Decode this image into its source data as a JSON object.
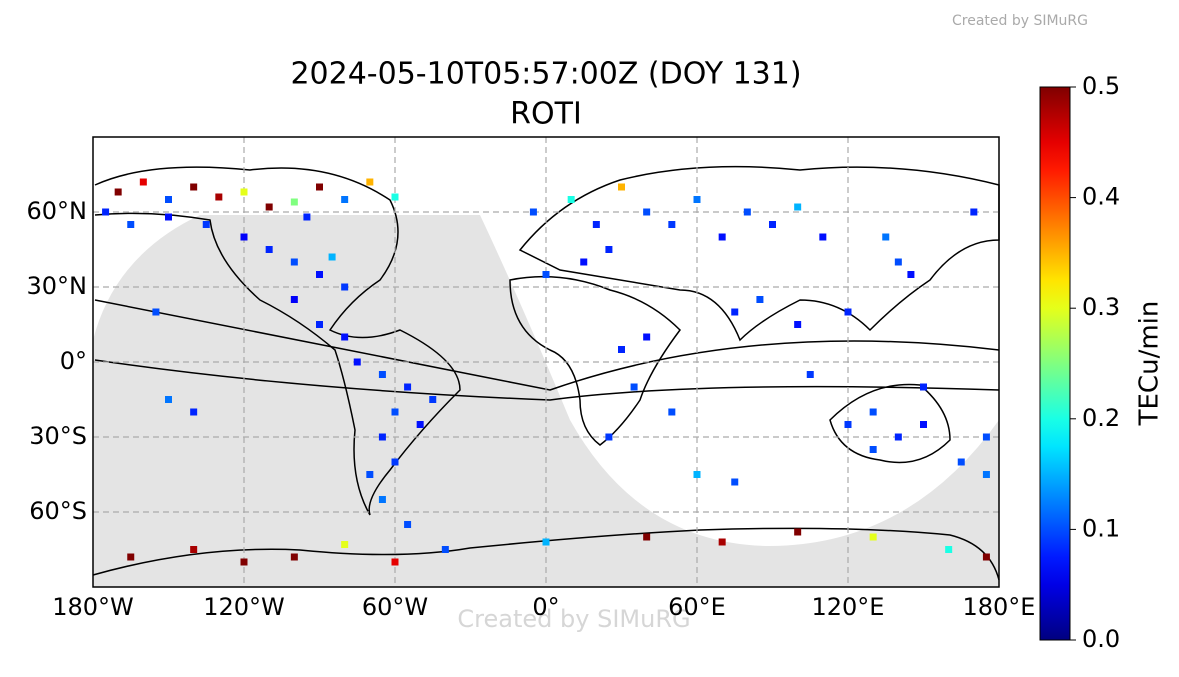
{
  "credit": "Created by SIMuRG",
  "chart_data": {
    "type": "scatter",
    "title": "2024-05-10T05:57:00Z (DOY 131)",
    "subtitle": "ROTI",
    "x": [
      -170,
      -160,
      -150,
      -140,
      -130,
      -120,
      -110,
      -100,
      -95,
      -90,
      -80,
      -70,
      -60,
      -175,
      -165,
      -150,
      -135,
      -120,
      -110,
      -100,
      -90,
      -85,
      -80,
      -100,
      -90,
      -80,
      -155,
      -150,
      -140,
      -75,
      -65,
      -55,
      -45,
      -60,
      -50,
      -65,
      -60,
      -70,
      -65,
      -55,
      -5,
      10,
      20,
      30,
      40,
      50,
      60,
      70,
      80,
      90,
      100,
      110,
      25,
      0,
      15,
      30,
      35,
      25,
      40,
      50,
      75,
      85,
      100,
      105,
      120,
      140,
      145,
      135,
      150,
      120,
      130,
      140,
      150,
      130,
      165,
      175,
      170,
      175,
      60,
      75,
      -165,
      -140,
      -120,
      -100,
      -80,
      -60,
      -40,
      0,
      40,
      70,
      100,
      130,
      160,
      175
    ],
    "y": [
      68,
      72,
      65,
      70,
      66,
      68,
      62,
      64,
      58,
      70,
      65,
      72,
      66,
      60,
      55,
      58,
      55,
      50,
      45,
      40,
      35,
      42,
      30,
      25,
      15,
      10,
      20,
      -15,
      -20,
      0,
      -5,
      -10,
      -15,
      -20,
      -25,
      -30,
      -40,
      -45,
      -55,
      -65,
      60,
      65,
      55,
      70,
      60,
      55,
      65,
      50,
      60,
      55,
      62,
      50,
      45,
      35,
      40,
      5,
      -10,
      -30,
      10,
      -20,
      20,
      25,
      15,
      -5,
      20,
      40,
      35,
      50,
      -10,
      -25,
      -20,
      -30,
      -25,
      -35,
      -40,
      -45,
      60,
      -30,
      -45,
      -48,
      -78,
      -75,
      -80,
      -78,
      -73,
      -80,
      -75,
      -72,
      -70,
      -72,
      -68,
      -70,
      -75,
      -78
    ],
    "values": [
      0.5,
      0.45,
      0.1,
      0.5,
      0.48,
      0.3,
      0.5,
      0.25,
      0.08,
      0.5,
      0.12,
      0.35,
      0.2,
      0.08,
      0.1,
      0.07,
      0.09,
      0.06,
      0.08,
      0.1,
      0.07,
      0.15,
      0.09,
      0.06,
      0.08,
      0.07,
      0.1,
      0.12,
      0.08,
      0.07,
      0.1,
      0.08,
      0.09,
      0.1,
      0.07,
      0.08,
      0.09,
      0.1,
      0.12,
      0.1,
      0.1,
      0.2,
      0.08,
      0.35,
      0.1,
      0.09,
      0.12,
      0.07,
      0.1,
      0.08,
      0.15,
      0.07,
      0.08,
      0.1,
      0.07,
      0.08,
      0.1,
      0.09,
      0.07,
      0.1,
      0.08,
      0.1,
      0.07,
      0.09,
      0.08,
      0.1,
      0.07,
      0.12,
      0.08,
      0.09,
      0.1,
      0.08,
      0.07,
      0.1,
      0.1,
      0.12,
      0.08,
      0.1,
      0.15,
      0.1,
      0.5,
      0.48,
      0.5,
      0.5,
      0.3,
      0.45,
      0.1,
      0.15,
      0.5,
      0.48,
      0.5,
      0.3,
      0.2,
      0.5
    ],
    "xlim": [
      -180,
      180
    ],
    "ylim": [
      -90,
      90
    ],
    "xticks": [
      {
        "value": -180,
        "label": "180°W"
      },
      {
        "value": -120,
        "label": "120°W"
      },
      {
        "value": -60,
        "label": "60°W"
      },
      {
        "value": 0,
        "label": "0°"
      },
      {
        "value": 60,
        "label": "60°E"
      },
      {
        "value": 120,
        "label": "120°E"
      },
      {
        "value": 180,
        "label": "180°E"
      }
    ],
    "yticks": [
      {
        "value": -60,
        "label": "60°S"
      },
      {
        "value": -30,
        "label": "30°S"
      },
      {
        "value": 0,
        "label": "0°"
      },
      {
        "value": 30,
        "label": "30°N"
      },
      {
        "value": 60,
        "label": "60°N"
      }
    ],
    "grid": true,
    "colormap": "jet",
    "colorbar": {
      "label": "TECu/min",
      "lim": [
        0,
        0.5
      ],
      "ticks": [
        {
          "value": 0,
          "label": "0.0"
        },
        0.1,
        0.2,
        0.3,
        0.4,
        0.5
      ]
    },
    "watermark": "Created by SIMuRG"
  }
}
